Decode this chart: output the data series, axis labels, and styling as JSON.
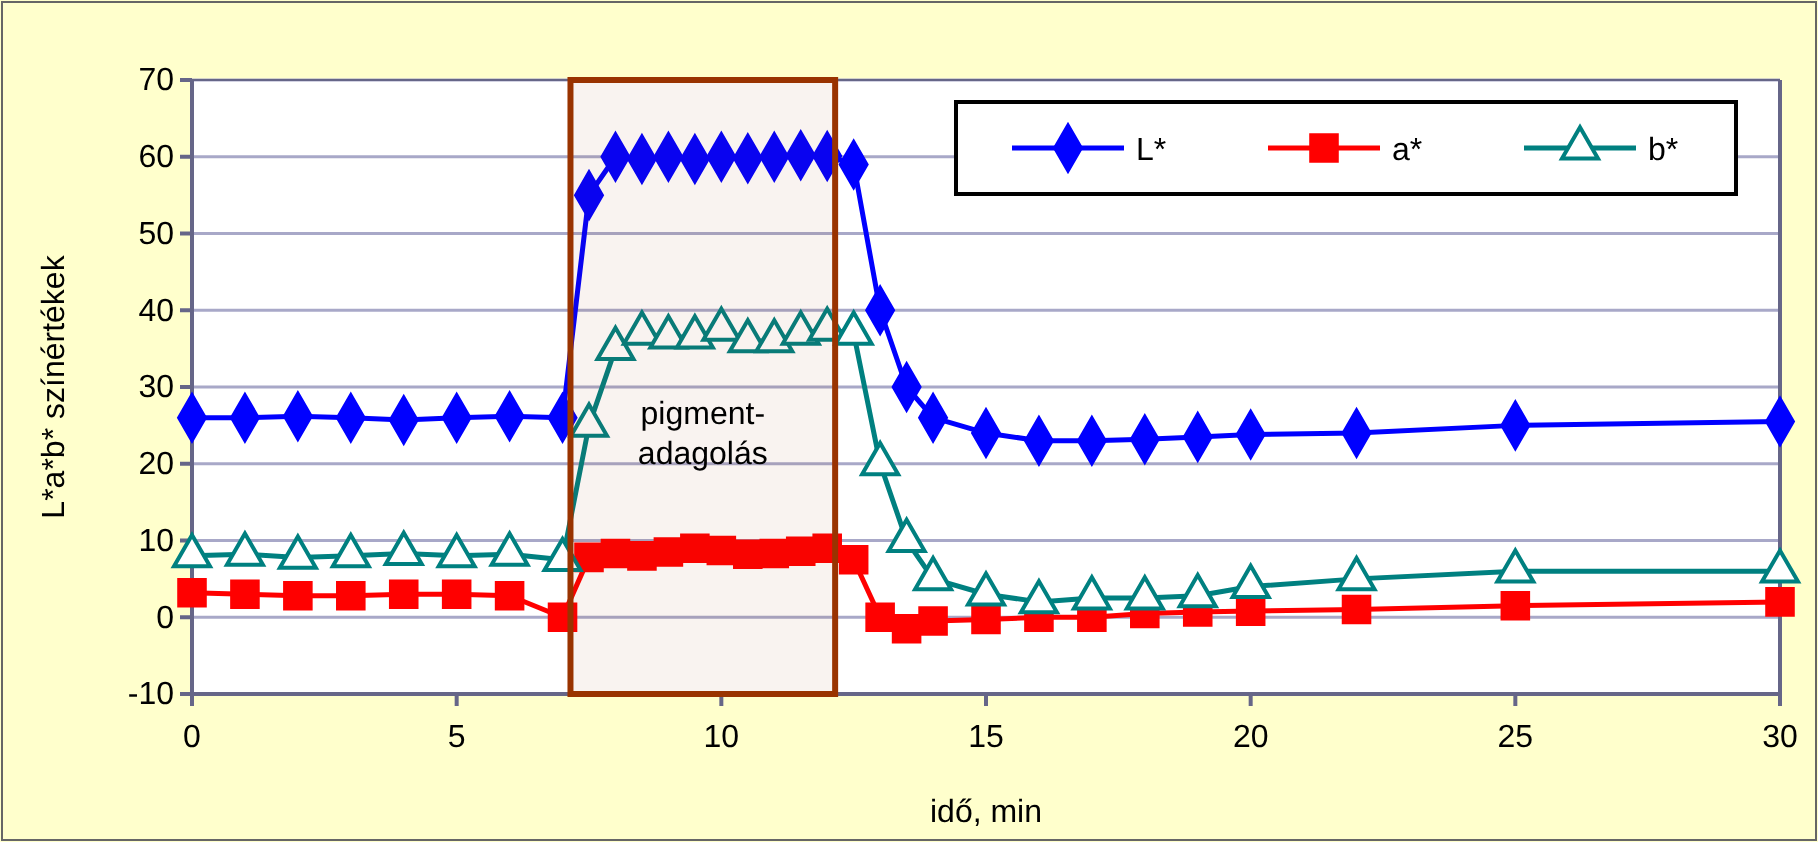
{
  "chart_data": {
    "type": "line",
    "xlabel": "idő, min",
    "ylabel": "L*a*b* színértékek",
    "x": [
      0,
      1,
      2,
      3,
      4,
      5,
      6,
      7,
      7.5,
      8,
      8.5,
      9,
      9.5,
      10,
      10.5,
      11,
      11.5,
      12,
      12.5,
      13,
      13.5,
      14,
      15,
      16,
      17,
      18,
      19,
      20,
      22,
      25,
      30
    ],
    "series": [
      {
        "name": "L*",
        "color": "#0000ff",
        "marker": "diamond",
        "values": [
          26,
          26,
          26.2,
          26,
          25.7,
          26,
          26.2,
          26,
          55,
          60,
          59.7,
          60,
          59.7,
          60,
          59.8,
          60,
          60.2,
          60.1,
          59,
          40,
          30,
          26,
          24,
          23,
          23,
          23.2,
          23.5,
          23.8,
          24,
          25,
          25.5
        ]
      },
      {
        "name": "a*",
        "color": "#ff0000",
        "marker": "square",
        "values": [
          3.2,
          3,
          2.8,
          2.8,
          3,
          3,
          2.8,
          0,
          7.8,
          8.3,
          8,
          8.5,
          9,
          8.7,
          8.2,
          8.3,
          8.6,
          9,
          7.5,
          0,
          -1.5,
          -0.5,
          -0.3,
          0,
          0,
          0.5,
          0.7,
          0.8,
          1,
          1.5,
          2
        ]
      },
      {
        "name": "b*",
        "color": "#008080",
        "marker": "triangle",
        "values": [
          8,
          8.2,
          7.8,
          8,
          8.3,
          8,
          8.2,
          7.5,
          25,
          35,
          37,
          36.5,
          36.5,
          37.5,
          36,
          36,
          37,
          37.5,
          37,
          20,
          10,
          5,
          3,
          2,
          2.5,
          2.5,
          2.8,
          4,
          5,
          6,
          6
        ]
      }
    ],
    "xlim": [
      0,
      30
    ],
    "xticks": [
      0,
      5,
      10,
      15,
      20,
      25,
      30
    ],
    "ylim": [
      -10,
      70
    ],
    "yticks": [
      -10,
      0,
      10,
      20,
      30,
      40,
      50,
      60,
      70
    ],
    "grid": "y",
    "legend": "top right",
    "bands": [
      {
        "axis": "x",
        "from": 7.15,
        "to": 12.15,
        "label": "pigment-adagolás",
        "color": "#993300"
      }
    ]
  }
}
